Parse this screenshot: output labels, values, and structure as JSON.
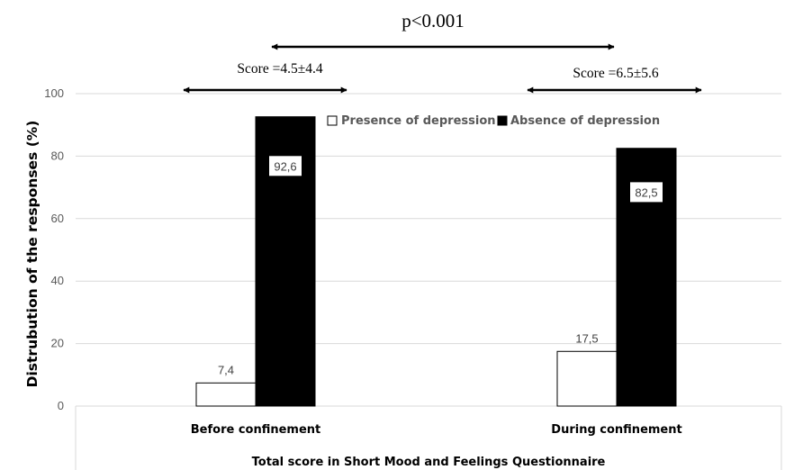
{
  "chart_data": {
    "type": "bar",
    "categories": [
      "Before confinement",
      "During confinement"
    ],
    "series": [
      {
        "name": "Presence of depression",
        "values": [
          7.4,
          17.5
        ],
        "labels": [
          "7,4",
          "17,5"
        ],
        "color": "#ffffff"
      },
      {
        "name": "Absence of depression",
        "values": [
          92.6,
          82.5
        ],
        "labels": [
          "92,6",
          "82,5"
        ],
        "color": "#000000"
      }
    ],
    "title": "p<0.001",
    "xlabel": "Total score in Short Mood and Feelings Questionnaire",
    "ylabel": "Distrubution of the responses (%)",
    "ylim": [
      0,
      100
    ],
    "yticks": [
      0,
      20,
      40,
      60,
      80,
      100
    ],
    "grid": true,
    "legend_position": "top-right",
    "annotations": {
      "score_before": "Score =4.5±4.4",
      "score_during": "Score =6.5±5.6"
    }
  }
}
